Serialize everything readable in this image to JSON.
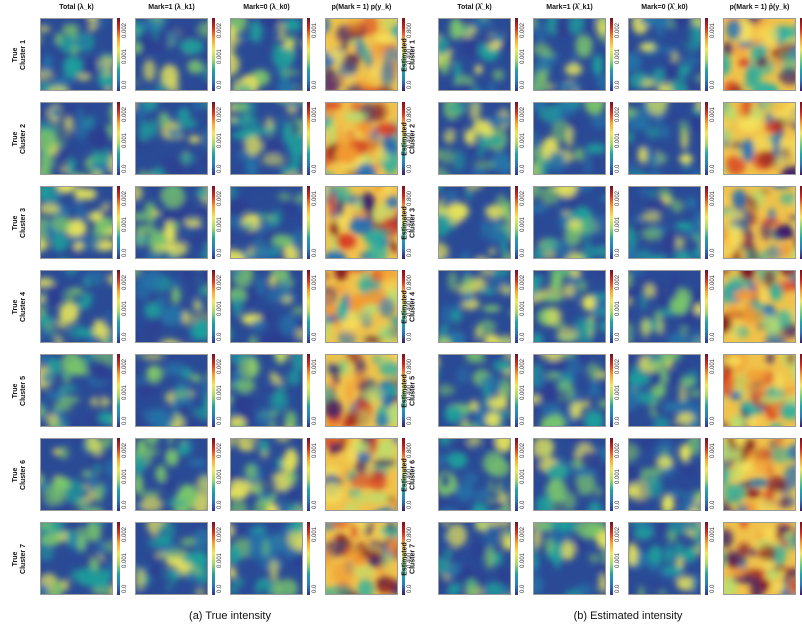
{
  "sections": [
    {
      "caption": "(a) True intensity",
      "headers": [
        "Total (λ_k)",
        "Mark=1 (λ_k1)",
        "Mark=0 (λ_k0)",
        "p(Mark = 1) p(y_k)"
      ],
      "rows": [
        {
          "line1": "True",
          "line2": "Cluster 1"
        },
        {
          "line1": "True",
          "line2": "Cluster 2"
        },
        {
          "line1": "True",
          "line2": "Cluster 3"
        },
        {
          "line1": "True",
          "line2": "Cluster 4"
        },
        {
          "line1": "True",
          "line2": "Cluster 5"
        },
        {
          "line1": "True",
          "line2": "Cluster 6"
        },
        {
          "line1": "True",
          "line2": "Cluster 7"
        }
      ]
    },
    {
      "caption": "(b) Estimated intensity",
      "headers": [
        "Total (λ̂_k)",
        "Mark=1 (λ̂_k1)",
        "Mark=0 (λ̂_k0)",
        "p(Mark = 1) p̂(y_k)"
      ],
      "rows": [
        {
          "line1": "Estimated",
          "line2": "Cluster 1"
        },
        {
          "line1": "Estimated",
          "line2": "Cluster 2"
        },
        {
          "line1": "Estimated",
          "line2": "Cluster 3"
        },
        {
          "line1": "Estimated",
          "line2": "Cluster 4"
        },
        {
          "line1": "Estimated",
          "line2": "Cluster 5"
        },
        {
          "line1": "Estimated",
          "line2": "Cluster 6"
        },
        {
          "line1": "Estimated",
          "line2": "Cluster 7"
        }
      ]
    }
  ],
  "colorbar_ticks": {
    "total": [
      "0.0",
      "0.001",
      "0.002"
    ],
    "mark1": [
      "0.0",
      "0.001",
      "0.002"
    ],
    "mark0": [
      "0.0",
      "0.001"
    ],
    "prob": [
      "0.0",
      "0.400",
      "0.800"
    ]
  },
  "colors": {
    "viridis_like": [
      "#2c3e91",
      "#2573a8",
      "#1e9f9b",
      "#79c56b",
      "#e6e35a"
    ],
    "spectral_like": [
      "#3b1f6b",
      "#2570b5",
      "#2ab0a0",
      "#b8e070",
      "#f6e25a",
      "#f2982f",
      "#d63a22",
      "#7e1020"
    ]
  }
}
